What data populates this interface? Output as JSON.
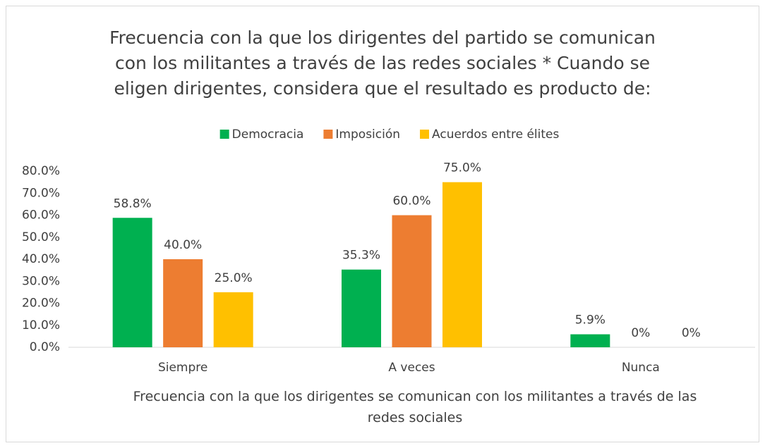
{
  "chart_data": {
    "type": "bar",
    "title": "Frecuencia con la que los dirigentes del partido se comunican con los militantes a través de las redes sociales * Cuando se eligen dirigentes, considera que el resultado es producto de:",
    "x_label": "Frecuencia con la que los dirigentes se comunican con los militantes a través de las redes sociales",
    "categories": [
      "Siempre",
      "A veces",
      "Nunca"
    ],
    "series": [
      {
        "name": "Democracia",
        "color": "#00b050",
        "values": [
          58.8,
          35.3,
          5.9
        ],
        "value_labels": [
          "58.8%",
          "35.3%",
          "5.9%"
        ]
      },
      {
        "name": "Imposición",
        "color": "#ed7d31",
        "values": [
          40.0,
          60.0,
          0
        ],
        "value_labels": [
          "40.0%",
          "60.0%",
          "0%"
        ]
      },
      {
        "name": "Acuerdos entre élites",
        "color": "#ffc000",
        "values": [
          25.0,
          75.0,
          0
        ],
        "value_labels": [
          "25.0%",
          "75.0%",
          "0%"
        ]
      }
    ],
    "ylim": [
      0,
      80
    ],
    "yticks": [
      {
        "value": 0,
        "label": "0.0%"
      },
      {
        "value": 10,
        "label": "10.0%"
      },
      {
        "value": 20,
        "label": "20.0%"
      },
      {
        "value": 30,
        "label": "30.0%"
      },
      {
        "value": 40,
        "label": "40.0%"
      },
      {
        "value": 50,
        "label": "50.0%"
      },
      {
        "value": 60,
        "label": "60.0%"
      },
      {
        "value": 70,
        "label": "70.0%"
      },
      {
        "value": 80,
        "label": "80.0%"
      }
    ],
    "grid": false,
    "legend": "top"
  }
}
